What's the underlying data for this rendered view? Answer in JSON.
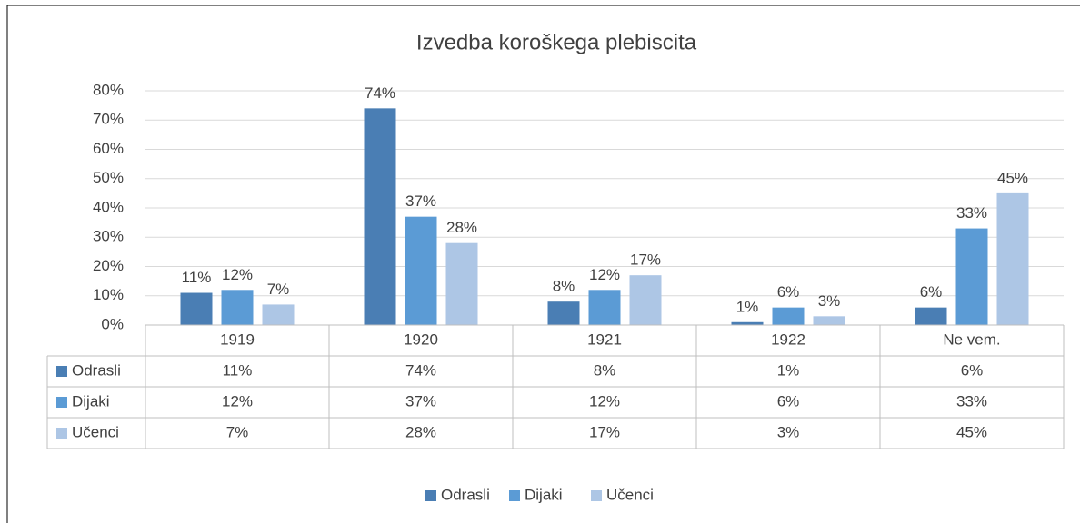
{
  "chart_data": {
    "type": "bar",
    "title": "Izvedba koroškega plebiscita",
    "categories": [
      "1919",
      "1920",
      "1921",
      "1922",
      "Ne vem."
    ],
    "series": [
      {
        "name": "Odrasli",
        "color": "#4a7eb4",
        "values": [
          11,
          74,
          8,
          1,
          6
        ],
        "value_labels": [
          "11%",
          "74%",
          "8%",
          "1%",
          "6%"
        ]
      },
      {
        "name": "Dijaki",
        "color": "#5b9bd5",
        "values": [
          12,
          37,
          12,
          6,
          33
        ],
        "value_labels": [
          "12%",
          "37%",
          "12%",
          "6%",
          "33%"
        ]
      },
      {
        "name": "Učenci",
        "color": "#adc6e5",
        "values": [
          7,
          28,
          17,
          3,
          45
        ],
        "value_labels": [
          "7%",
          "28%",
          "17%",
          "3%",
          "45%"
        ]
      }
    ],
    "ylim": [
      0,
      80
    ],
    "yticks": [
      {
        "value": 0,
        "label": "0%"
      },
      {
        "value": 10,
        "label": "10%"
      },
      {
        "value": 20,
        "label": "20%"
      },
      {
        "value": 30,
        "label": "30%"
      },
      {
        "value": 40,
        "label": "40%"
      },
      {
        "value": 50,
        "label": "50%"
      },
      {
        "value": 60,
        "label": "60%"
      },
      {
        "value": 70,
        "label": "70%"
      },
      {
        "value": 80,
        "label": "80%"
      }
    ],
    "grid": true,
    "legend": "bottom",
    "data_table": true
  }
}
